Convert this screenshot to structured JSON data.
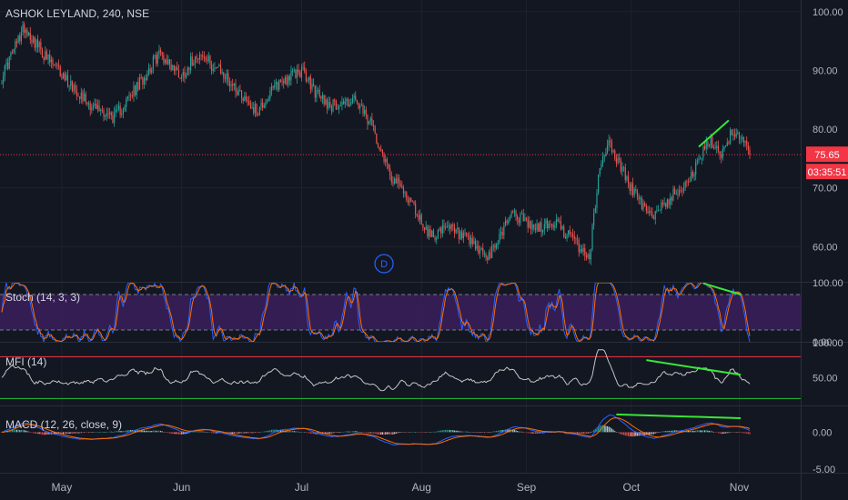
{
  "chart_title": "ASHOK LEYLAND, 240, NSE",
  "colors": {
    "background": "#131722",
    "up": "#26a69a",
    "down": "#ef5350",
    "grid": "#1e222d",
    "axis_text": "#b2b5be",
    "last_price": "#f23645",
    "stoch_k": "#2962ff",
    "stoch_d": "#ff6d00",
    "stoch_band": "#3b1f5c",
    "mfi": "#c4c4c4",
    "mfi_upper": "#f23645",
    "mfi_lower": "#26c03a",
    "macd_line": "#2962ff",
    "signal_line": "#ff6d00",
    "trendline": "#39e639",
    "event_marker": "#2962ff"
  },
  "x_axis": {
    "labels": [
      "May",
      "Jun",
      "Jul",
      "Aug",
      "Sep",
      "Oct",
      "Nov"
    ],
    "label_positions_index": [
      40,
      120,
      200,
      280,
      350,
      420,
      492
    ]
  },
  "panes": {
    "price": {
      "ylim": [
        54,
        102
      ],
      "ticks": [
        60,
        70,
        80,
        90,
        100
      ],
      "tick_labels": [
        "60.00",
        "70.00",
        "80.00",
        "90.00",
        "100.00"
      ],
      "last_price": 75.65,
      "last_price_label": "75.65",
      "countdown": "03:35:51",
      "event_marker_label": "D",
      "event_marker_index": 255
    },
    "stoch": {
      "title": "Stoch (14, 3, 3)",
      "ylim": [
        0,
        100
      ],
      "tick_labels": [
        "100.00",
        "0.00"
      ],
      "ticks": [
        100,
        0
      ],
      "bands": [
        20,
        80
      ]
    },
    "mfi": {
      "title": "MFI (14)",
      "ylim": [
        10,
        100
      ],
      "tick_labels": [
        "100.00",
        "50.00"
      ],
      "ticks": [
        100,
        50
      ],
      "bands": [
        20,
        80
      ]
    },
    "macd": {
      "title": "MACD (12, 26, close, 9)",
      "ylim": [
        -5.5,
        3.5
      ],
      "tick_labels": [
        "0.00",
        "-5.00"
      ],
      "ticks": [
        0,
        -5
      ]
    }
  },
  "chart_data": {
    "type": "candlestick",
    "count": 500,
    "anchors": [
      [
        0,
        89
      ],
      [
        15,
        97.5
      ],
      [
        30,
        92
      ],
      [
        45,
        88
      ],
      [
        60,
        84
      ],
      [
        75,
        82
      ],
      [
        90,
        87
      ],
      [
        105,
        93
      ],
      [
        120,
        89
      ],
      [
        130,
        93
      ],
      [
        145,
        90
      ],
      [
        160,
        86
      ],
      [
        170,
        83
      ],
      [
        185,
        88
      ],
      [
        200,
        90
      ],
      [
        210,
        86
      ],
      [
        220,
        84
      ],
      [
        235,
        85
      ],
      [
        248,
        80
      ],
      [
        260,
        72
      ],
      [
        272,
        68
      ],
      [
        285,
        62
      ],
      [
        300,
        63
      ],
      [
        315,
        60
      ],
      [
        325,
        58
      ],
      [
        340,
        66
      ],
      [
        355,
        63
      ],
      [
        370,
        64
      ],
      [
        385,
        60
      ],
      [
        392,
        58
      ],
      [
        398,
        72
      ],
      [
        404,
        78
      ],
      [
        412,
        74
      ],
      [
        420,
        70
      ],
      [
        432,
        65
      ],
      [
        445,
        68
      ],
      [
        460,
        72
      ],
      [
        472,
        78
      ],
      [
        480,
        76
      ],
      [
        488,
        80
      ],
      [
        500,
        75.65
      ]
    ],
    "trendlines": [
      {
        "pane": "price",
        "from": [
          465,
          77
        ],
        "to": [
          485,
          81.5
        ]
      },
      {
        "pane": "stoch",
        "from": [
          468,
          99
        ],
        "to": [
          493,
          80
        ]
      },
      {
        "pane": "mfi",
        "from": [
          430,
          75
        ],
        "to": [
          493,
          54
        ]
      },
      {
        "pane": "macd",
        "from": [
          410,
          2.4
        ],
        "to": [
          493,
          1.9
        ]
      }
    ]
  }
}
